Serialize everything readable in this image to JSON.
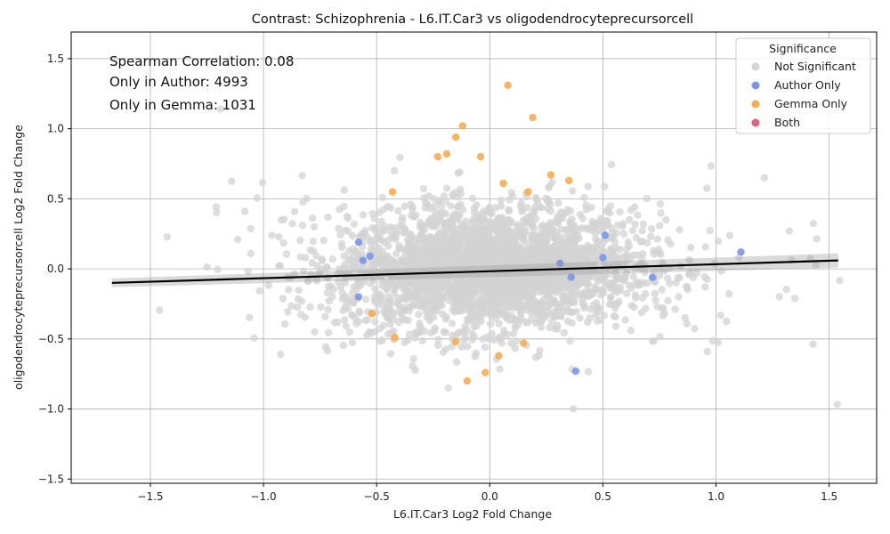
{
  "chart_data": {
    "type": "scatter",
    "title": "Contrast: Schizophrenia - L6.IT.Car3 vs oligodendrocyteprecursorcell",
    "xlabel": "L6.IT.Car3 Log2 Fold Change",
    "ylabel": "oligodendrocyteprecursorcell Log2 Fold Change",
    "xlim": [
      -1.85,
      1.71
    ],
    "ylim": [
      -1.53,
      1.69
    ],
    "xticks": [
      -1.5,
      -1.0,
      -0.5,
      0.0,
      0.5,
      1.0,
      1.5
    ],
    "xtick_labels": [
      "−1.5",
      "−1.0",
      "−0.5",
      "0.0",
      "0.5",
      "1.0",
      "1.5"
    ],
    "yticks": [
      -1.5,
      -1.0,
      -0.5,
      0.0,
      0.5,
      1.0,
      1.5
    ],
    "ytick_labels": [
      "−1.5",
      "−1.0",
      "−0.5",
      "0.0",
      "0.5",
      "1.0",
      "1.5"
    ],
    "grid": true,
    "annotations": [
      "Spearman Correlation: 0.08",
      "Only in Author: 4993",
      "Only in Gemma: 1031"
    ],
    "legend": {
      "title": "Significance",
      "placement": "top-right",
      "entries": [
        {
          "name": "Not Significant",
          "color": "#d3d3d3"
        },
        {
          "name": "Author Only",
          "color": "#7b96e6"
        },
        {
          "name": "Gemma Only",
          "color": "#f5ad52"
        },
        {
          "name": "Both",
          "color": "#e0657a"
        }
      ]
    },
    "trend_line": {
      "x": [
        -1.67,
        1.54
      ],
      "y": [
        -0.1,
        0.06
      ],
      "color": "#000000"
    },
    "series": [
      {
        "name": "Author Only",
        "color": "#7b96e6",
        "x": [
          -0.58,
          -0.56,
          -0.53,
          -0.58,
          0.5,
          0.51,
          0.72,
          0.38,
          1.11,
          0.36,
          0.31
        ],
        "y": [
          0.19,
          0.06,
          0.09,
          -0.2,
          0.08,
          0.24,
          -0.06,
          -0.73,
          0.12,
          -0.06,
          0.04
        ]
      },
      {
        "name": "Gemma Only",
        "color": "#f5ad52",
        "x": [
          0.08,
          0.19,
          -0.12,
          -0.15,
          -0.19,
          -0.23,
          -0.04,
          0.27,
          0.35,
          0.06,
          0.17,
          -0.43,
          -0.52,
          -0.42,
          -0.15,
          -0.02,
          0.04,
          -0.1,
          0.15
        ],
        "y": [
          1.31,
          1.08,
          1.02,
          0.94,
          0.82,
          0.8,
          0.8,
          0.67,
          0.63,
          0.61,
          0.55,
          0.55,
          -0.32,
          -0.49,
          -0.52,
          -0.74,
          -0.62,
          -0.8,
          -0.53
        ]
      },
      {
        "name": "Not Significant",
        "color": "#d3d3d3",
        "note_count": 3000
      }
    ]
  }
}
